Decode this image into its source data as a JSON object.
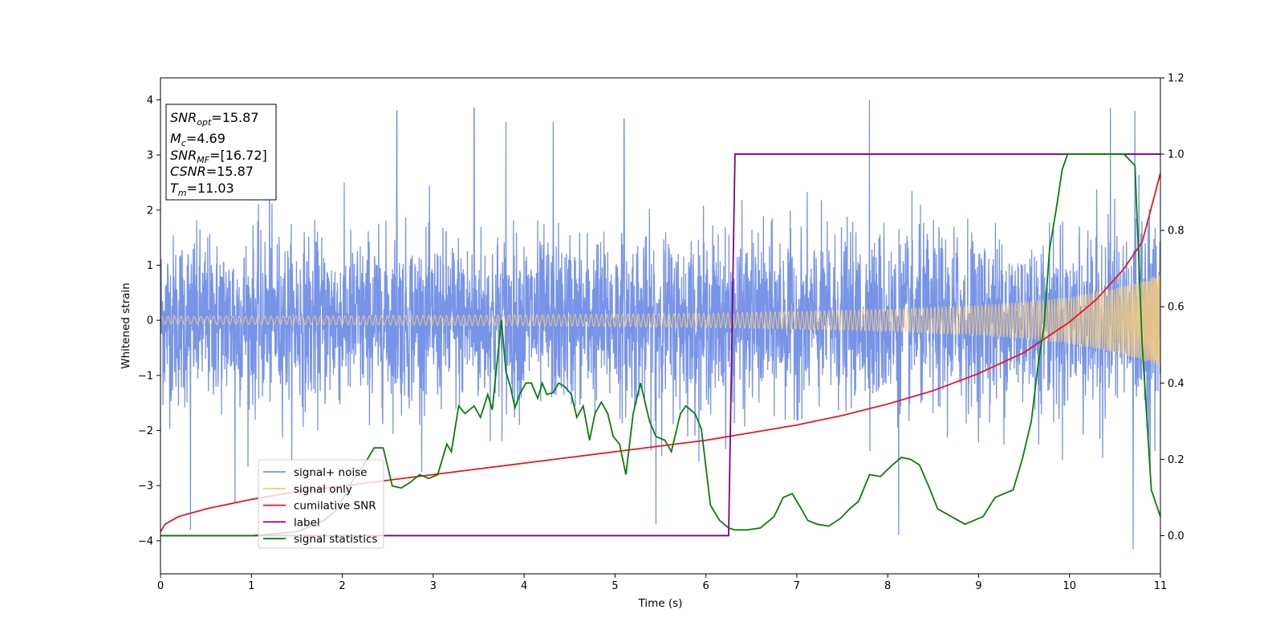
{
  "chart_data": {
    "type": "line",
    "xlabel": "Time (s)",
    "ylabel": "Whitened strain",
    "xlim": [
      0,
      11
    ],
    "ylim_left": [
      -4.6,
      4.4
    ],
    "ylim_right": [
      -0.1,
      1.2
    ],
    "x_ticks": [
      0,
      1,
      2,
      3,
      4,
      5,
      6,
      7,
      8,
      9,
      10,
      11
    ],
    "x_tick_labels": [
      "0",
      "1",
      "2",
      "3",
      "4",
      "5",
      "6",
      "7",
      "8",
      "9",
      "10",
      "11"
    ],
    "y_left_ticks": [
      -4,
      -3,
      -2,
      -1,
      0,
      1,
      2,
      3,
      4
    ],
    "y_left_tick_labels": [
      "−4",
      "−3",
      "−2",
      "−1",
      "0",
      "1",
      "2",
      "3",
      "4"
    ],
    "y_right_ticks": [
      0.0,
      0.2,
      0.4,
      0.6,
      0.8,
      1.0,
      1.2
    ],
    "y_right_tick_labels": [
      "0.0",
      "0.2",
      "0.4",
      "0.6",
      "0.8",
      "1.0",
      "1.2"
    ],
    "info_box": {
      "snr_opt": "=15.87",
      "mc": "=4.69",
      "snr_mf": "=[16.72]",
      "csnr": "=15.87",
      "tm": "=11.03"
    },
    "legend_position": "lower-left",
    "series": [
      {
        "name": "signal+ noise",
        "axis": "left",
        "color": "#7894e8",
        "description_of_values": "noise-dominated strain, roughly within -2 to 2, peaks near -4.2 to 4.0",
        "amplitude_envelope": 1.3,
        "peaks": [
          [
            0.33,
            -3.8
          ],
          [
            2.6,
            3.8
          ],
          [
            3.45,
            3.85
          ],
          [
            3.8,
            3.6
          ],
          [
            4.32,
            3.6
          ],
          [
            5.1,
            3.65
          ],
          [
            5.45,
            -3.7
          ],
          [
            7.8,
            4.0
          ],
          [
            8.12,
            -3.9
          ],
          [
            10.45,
            3.85
          ],
          [
            10.72,
            3.8
          ],
          [
            10.7,
            -4.15
          ],
          [
            0.82,
            -3.3
          ],
          [
            1.2,
            3.3
          ]
        ]
      },
      {
        "name": "signal only",
        "axis": "left",
        "color": "#f5cb7d",
        "description_of_values": "chirp oscillation, amplitude rising with time",
        "amplitude": [
          [
            0,
            0.07
          ],
          [
            2,
            0.08
          ],
          [
            4,
            0.1
          ],
          [
            6,
            0.13
          ],
          [
            7,
            0.16
          ],
          [
            8,
            0.2
          ],
          [
            9,
            0.27
          ],
          [
            9.5,
            0.33
          ],
          [
            10,
            0.42
          ],
          [
            10.5,
            0.58
          ],
          [
            10.8,
            0.72
          ],
          [
            11,
            0.85
          ]
        ]
      },
      {
        "name": "cumilative SNR",
        "axis": "right",
        "color": "#e8181c",
        "x": [
          0,
          0.05,
          0.2,
          0.5,
          1,
          1.5,
          2,
          2.5,
          3,
          3.5,
          4,
          4.5,
          5,
          5.5,
          6,
          6.5,
          7,
          7.5,
          8,
          8.5,
          9,
          9.5,
          10,
          10.3,
          10.6,
          10.8,
          11
        ],
        "values": [
          0.01,
          0.03,
          0.05,
          0.07,
          0.095,
          0.115,
          0.13,
          0.145,
          0.16,
          0.175,
          0.19,
          0.205,
          0.22,
          0.235,
          0.25,
          0.27,
          0.29,
          0.315,
          0.345,
          0.38,
          0.425,
          0.48,
          0.56,
          0.62,
          0.7,
          0.77,
          0.95
        ]
      },
      {
        "name": "label",
        "axis": "right",
        "color": "#800080",
        "x": [
          0,
          6.25,
          6.32,
          11
        ],
        "values": [
          0,
          0,
          1,
          1
        ]
      },
      {
        "name": "signal statistics",
        "axis": "right",
        "color": "#0a7d0a",
        "x": [
          0,
          1,
          1.5,
          1.8,
          1.95,
          2.1,
          2.25,
          2.35,
          2.45,
          2.55,
          2.65,
          2.75,
          2.85,
          2.95,
          3.05,
          3.15,
          3.2,
          3.28,
          3.35,
          3.45,
          3.52,
          3.6,
          3.65,
          3.75,
          3.8,
          3.85,
          3.9,
          3.95,
          4.02,
          4.08,
          4.15,
          4.2,
          4.25,
          4.32,
          4.38,
          4.45,
          4.52,
          4.58,
          4.65,
          4.72,
          4.78,
          4.85,
          4.92,
          4.98,
          5.05,
          5.12,
          5.2,
          5.28,
          5.38,
          5.45,
          5.55,
          5.62,
          5.72,
          5.78,
          5.88,
          5.95,
          6.05,
          6.15,
          6.25,
          6.32,
          6.45,
          6.6,
          6.75,
          6.85,
          6.95,
          7.05,
          7.12,
          7.22,
          7.35,
          7.48,
          7.58,
          7.68,
          7.8,
          7.92,
          8.05,
          8.15,
          8.25,
          8.35,
          8.45,
          8.55,
          8.7,
          8.85,
          8.95,
          9.05,
          9.18,
          9.28,
          9.38,
          9.48,
          9.58,
          9.65,
          9.72,
          9.78,
          9.85,
          9.92,
          9.98,
          10.05,
          10.2,
          10.4,
          10.6,
          10.72,
          10.8,
          10.9,
          11
        ],
        "values": [
          0,
          0,
          0.01,
          0.04,
          0.07,
          0.14,
          0.19,
          0.23,
          0.23,
          0.13,
          0.125,
          0.14,
          0.16,
          0.15,
          0.16,
          0.24,
          0.22,
          0.34,
          0.32,
          0.34,
          0.31,
          0.37,
          0.33,
          0.565,
          0.43,
          0.39,
          0.335,
          0.37,
          0.4,
          0.4,
          0.36,
          0.4,
          0.37,
          0.375,
          0.4,
          0.39,
          0.37,
          0.31,
          0.34,
          0.25,
          0.32,
          0.35,
          0.32,
          0.26,
          0.24,
          0.16,
          0.32,
          0.4,
          0.3,
          0.26,
          0.25,
          0.22,
          0.32,
          0.34,
          0.32,
          0.28,
          0.08,
          0.04,
          0.02,
          0.015,
          0.015,
          0.02,
          0.05,
          0.1,
          0.11,
          0.07,
          0.04,
          0.03,
          0.025,
          0.045,
          0.07,
          0.09,
          0.16,
          0.155,
          0.185,
          0.205,
          0.2,
          0.185,
          0.13,
          0.07,
          0.05,
          0.03,
          0.04,
          0.05,
          0.1,
          0.11,
          0.12,
          0.2,
          0.3,
          0.44,
          0.55,
          0.75,
          0.85,
          0.96,
          1.0,
          1.0,
          1.0,
          1.0,
          1.0,
          0.97,
          0.5,
          0.12,
          0.05
        ]
      }
    ]
  }
}
